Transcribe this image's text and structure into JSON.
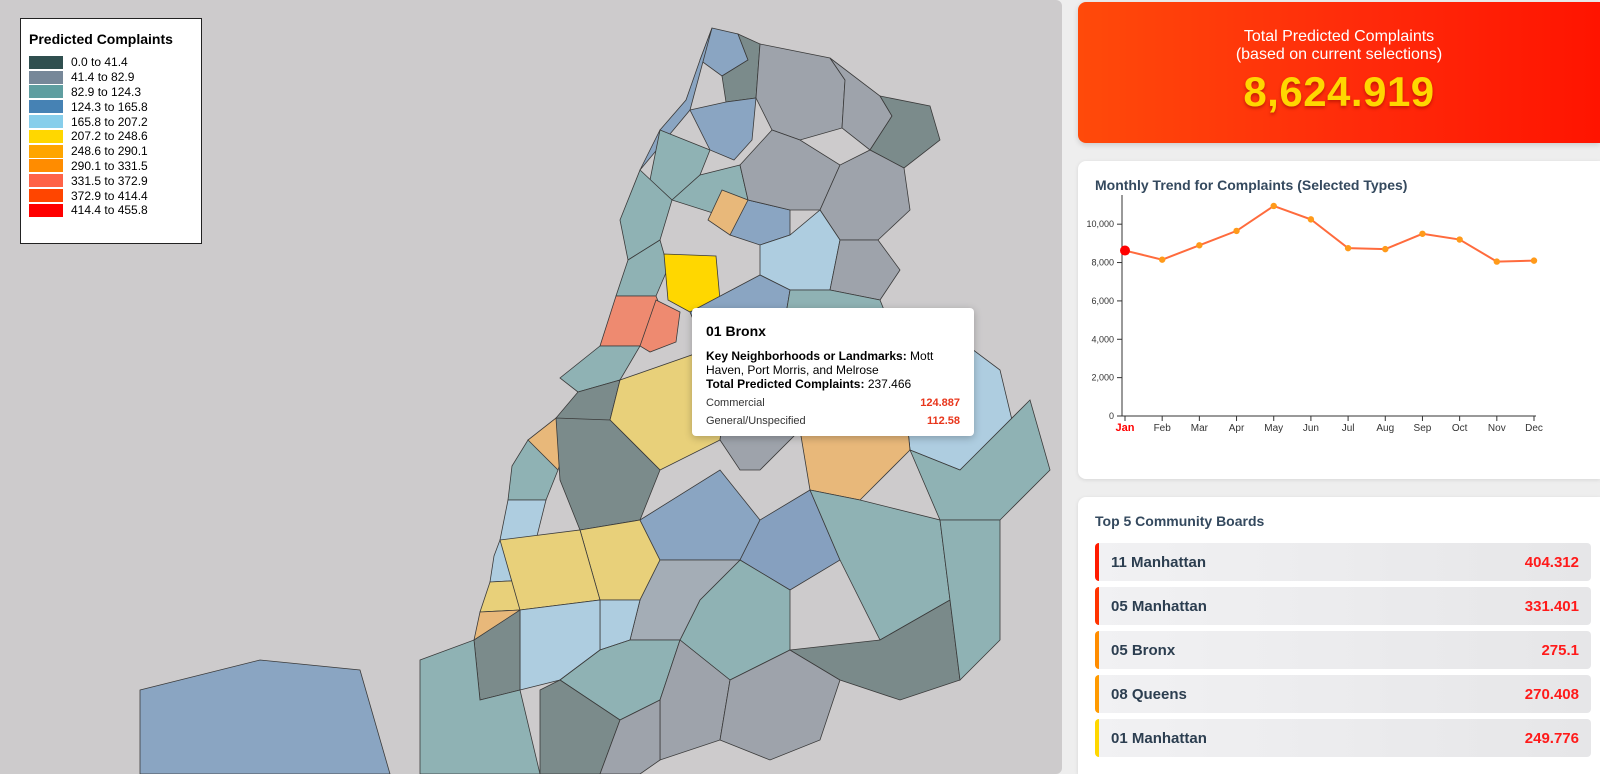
{
  "legend": {
    "title": "Predicted Complaints",
    "items": [
      {
        "label": "0.0 to 41.4",
        "color": "#2f4f4f"
      },
      {
        "label": "41.4 to 82.9",
        "color": "#778899"
      },
      {
        "label": "82.9 to 124.3",
        "color": "#5f9ea0"
      },
      {
        "label": "124.3 to 165.8",
        "color": "#4682b4"
      },
      {
        "label": "165.8 to 207.2",
        "color": "#87ceeb"
      },
      {
        "label": "207.2 to 248.6",
        "color": "#ffd700"
      },
      {
        "label": "248.6 to 290.1",
        "color": "#ffa500"
      },
      {
        "label": "290.1 to 331.5",
        "color": "#ff8c00"
      },
      {
        "label": "331.5 to 372.9",
        "color": "#ff6347"
      },
      {
        "label": "372.9 to 414.4",
        "color": "#ff4500"
      },
      {
        "label": "414.4 to 455.8",
        "color": "#ff0000"
      }
    ]
  },
  "tooltip": {
    "title": "01 Bronx",
    "neighborhoods_label": "Key Neighborhoods or Landmarks:",
    "neighborhoods_value": "Mott Haven, Port Morris, and Melrose",
    "total_label": "Total Predicted Complaints:",
    "total_value": "237.466",
    "rows": [
      {
        "name": "Commercial",
        "value": "124.887"
      },
      {
        "name": "General/Unspecified",
        "value": "112.58"
      }
    ]
  },
  "total": {
    "title": "Total Predicted Complaints",
    "subtitle": "(based on current selections)",
    "value": "8,624.919"
  },
  "trend": {
    "title": "Monthly Trend for Complaints (Selected Types)",
    "selected_month": "Jan",
    "line_color": "#ff6b3d",
    "point_color": "#ff9a1a",
    "selected_color": "#ff0000"
  },
  "chart_data": {
    "type": "line",
    "title": "Monthly Trend for Complaints (Selected Types)",
    "categories": [
      "Jan",
      "Feb",
      "Mar",
      "Apr",
      "May",
      "Jun",
      "Jul",
      "Aug",
      "Sep",
      "Oct",
      "Nov",
      "Dec"
    ],
    "values": [
      8625,
      8150,
      8900,
      9650,
      10950,
      10250,
      8750,
      8700,
      9500,
      9200,
      8050,
      8100
    ],
    "ylim": [
      0,
      11000
    ],
    "yticks": [
      0,
      2000,
      4000,
      6000,
      8000,
      10000
    ],
    "ytick_labels": [
      "0",
      "2,000",
      "4,000",
      "6,000",
      "8,000",
      "10,000"
    ],
    "grid": false
  },
  "top5": {
    "title": "Top 5 Community Boards",
    "items": [
      {
        "name": "11 Manhattan",
        "value": "404.312",
        "accent": "#ff1a00"
      },
      {
        "name": "05 Manhattan",
        "value": "331.401",
        "accent": "#ff3300"
      },
      {
        "name": "05 Bronx",
        "value": "275.1",
        "accent": "#ff8c00"
      },
      {
        "name": "08 Queens",
        "value": "270.408",
        "accent": "#ff9a00"
      },
      {
        "name": "01 Manhattan",
        "value": "249.776",
        "accent": "#ffd700"
      }
    ]
  },
  "map": {
    "region_colors": [
      "#8aa5c2",
      "#7b8b8b",
      "#9ea3ab",
      "#8fb2b4",
      "#aecde0",
      "#e8d07a",
      "#e8b87a",
      "#ee8a70",
      "#ffd700",
      "#86a0bf",
      "#a4adb6",
      "#7a8a8a"
    ]
  }
}
